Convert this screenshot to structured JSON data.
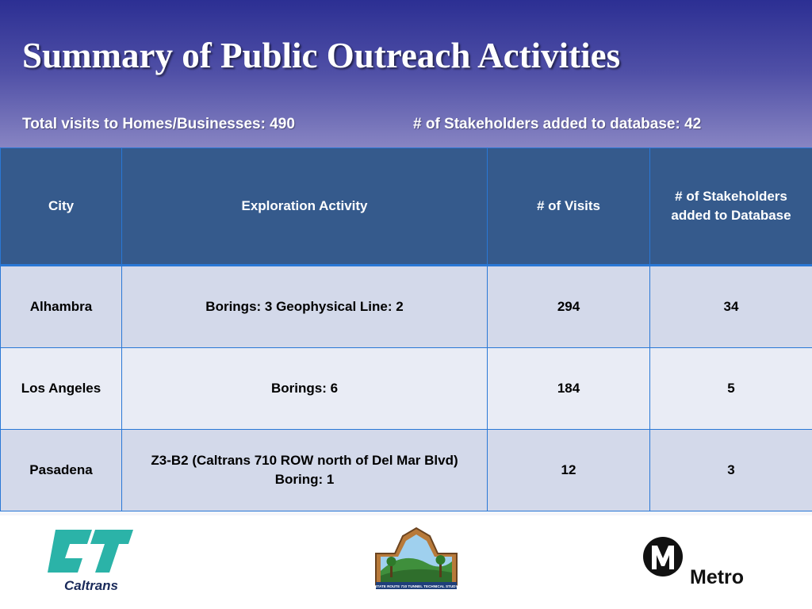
{
  "title": "Summary of Public Outreach Activities",
  "stats": {
    "visits": "Total visits to Homes/Businesses: 490",
    "stakeholders": "# of Stakeholders added to database: 42"
  },
  "table": {
    "headers": [
      "City",
      "Exploration Activity",
      "# of Visits",
      "# of Stakeholders added to Database"
    ],
    "rows": [
      {
        "city": "Alhambra",
        "activity_lines": [
          "Borings: 3 Geophysical Line: 2"
        ],
        "visits": "294",
        "stakeholders": "34"
      },
      {
        "city": "Los Angeles",
        "activity_lines": [
          "Borings: 6"
        ],
        "visits": "184",
        "stakeholders": "5"
      },
      {
        "city": "Pasadena",
        "activity_lines": [
          "Z3-B2 (Caltrans 710 ROW north of Del Mar Blvd)",
          "Boring: 1"
        ],
        "visits": "12",
        "stakeholders": "3"
      }
    ]
  },
  "logos": {
    "caltrans": {
      "text": "Caltrans",
      "icon": "caltrans-logo",
      "color": "#2bb3a8"
    },
    "study": {
      "text": "STATE ROUTE 710 TUNNEL TECHNICAL STUDY",
      "icon": "study-logo"
    },
    "metro": {
      "text": "Metro",
      "icon": "metro-logo"
    }
  },
  "colors": {
    "header_bg": "#355a8c",
    "row_a": "#d3d9ea",
    "row_b": "#e9ecf5",
    "border": "#2a78d6"
  }
}
